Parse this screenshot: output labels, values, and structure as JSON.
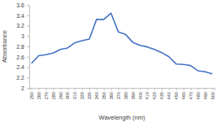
{
  "chart_data": {
    "type": "line",
    "x_label": "Wavelength (nm)",
    "y_label": "Absorbance",
    "categories": [
      "250",
      "260",
      "270",
      "280",
      "290",
      "300",
      "310",
      "320",
      "330",
      "340",
      "350",
      "360",
      "370",
      "380",
      "390",
      "400",
      "410",
      "420",
      "430",
      "440",
      "450",
      "460",
      "470",
      "480",
      "490",
      "500"
    ],
    "values": [
      2.47,
      2.62,
      2.64,
      2.67,
      2.74,
      2.77,
      2.87,
      2.91,
      2.94,
      3.32,
      3.32,
      3.44,
      3.08,
      3.03,
      2.88,
      2.82,
      2.79,
      2.74,
      2.68,
      2.6,
      2.46,
      2.45,
      2.43,
      2.33,
      2.31,
      2.27
    ],
    "color": "#4472c4",
    "ylim": [
      2,
      3.6
    ],
    "yticks": [
      2,
      2.2,
      2.4,
      2.6,
      2.8,
      3,
      3.2,
      3.4,
      3.6
    ],
    "grid": false
  }
}
